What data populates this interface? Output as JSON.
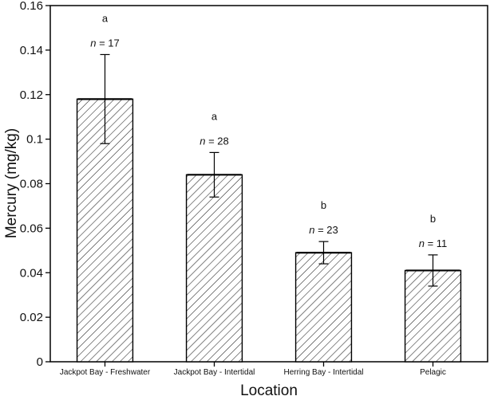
{
  "chart_data": {
    "type": "bar",
    "title": "",
    "xlabel": "Location",
    "ylabel": "Mercury (mg/kg)",
    "ylim": [
      0,
      0.16
    ],
    "yticks": [
      "0",
      "0.02",
      "0.04",
      "0.06",
      "0.08",
      "0.1",
      "0.12",
      "0.14",
      "0.16"
    ],
    "categories": [
      "Jackpot Bay - Freshwater",
      "Jackpot Bay - Intertidal",
      "Herring Bay - Intertidal",
      "Pelagic"
    ],
    "values": [
      0.118,
      0.084,
      0.049,
      0.041
    ],
    "error_low": [
      0.098,
      0.074,
      0.044,
      0.034
    ],
    "error_high": [
      0.138,
      0.094,
      0.054,
      0.048
    ],
    "sample_size_prefix": "n",
    "sample_size_labels": [
      "= 17",
      "= 28",
      "= 23",
      "= 11"
    ],
    "group_letters": [
      "a",
      "a",
      "b",
      "b"
    ],
    "fill_pattern": "diagonal-hatch",
    "bar_color": "#000000",
    "grid": false,
    "legend": "none"
  }
}
